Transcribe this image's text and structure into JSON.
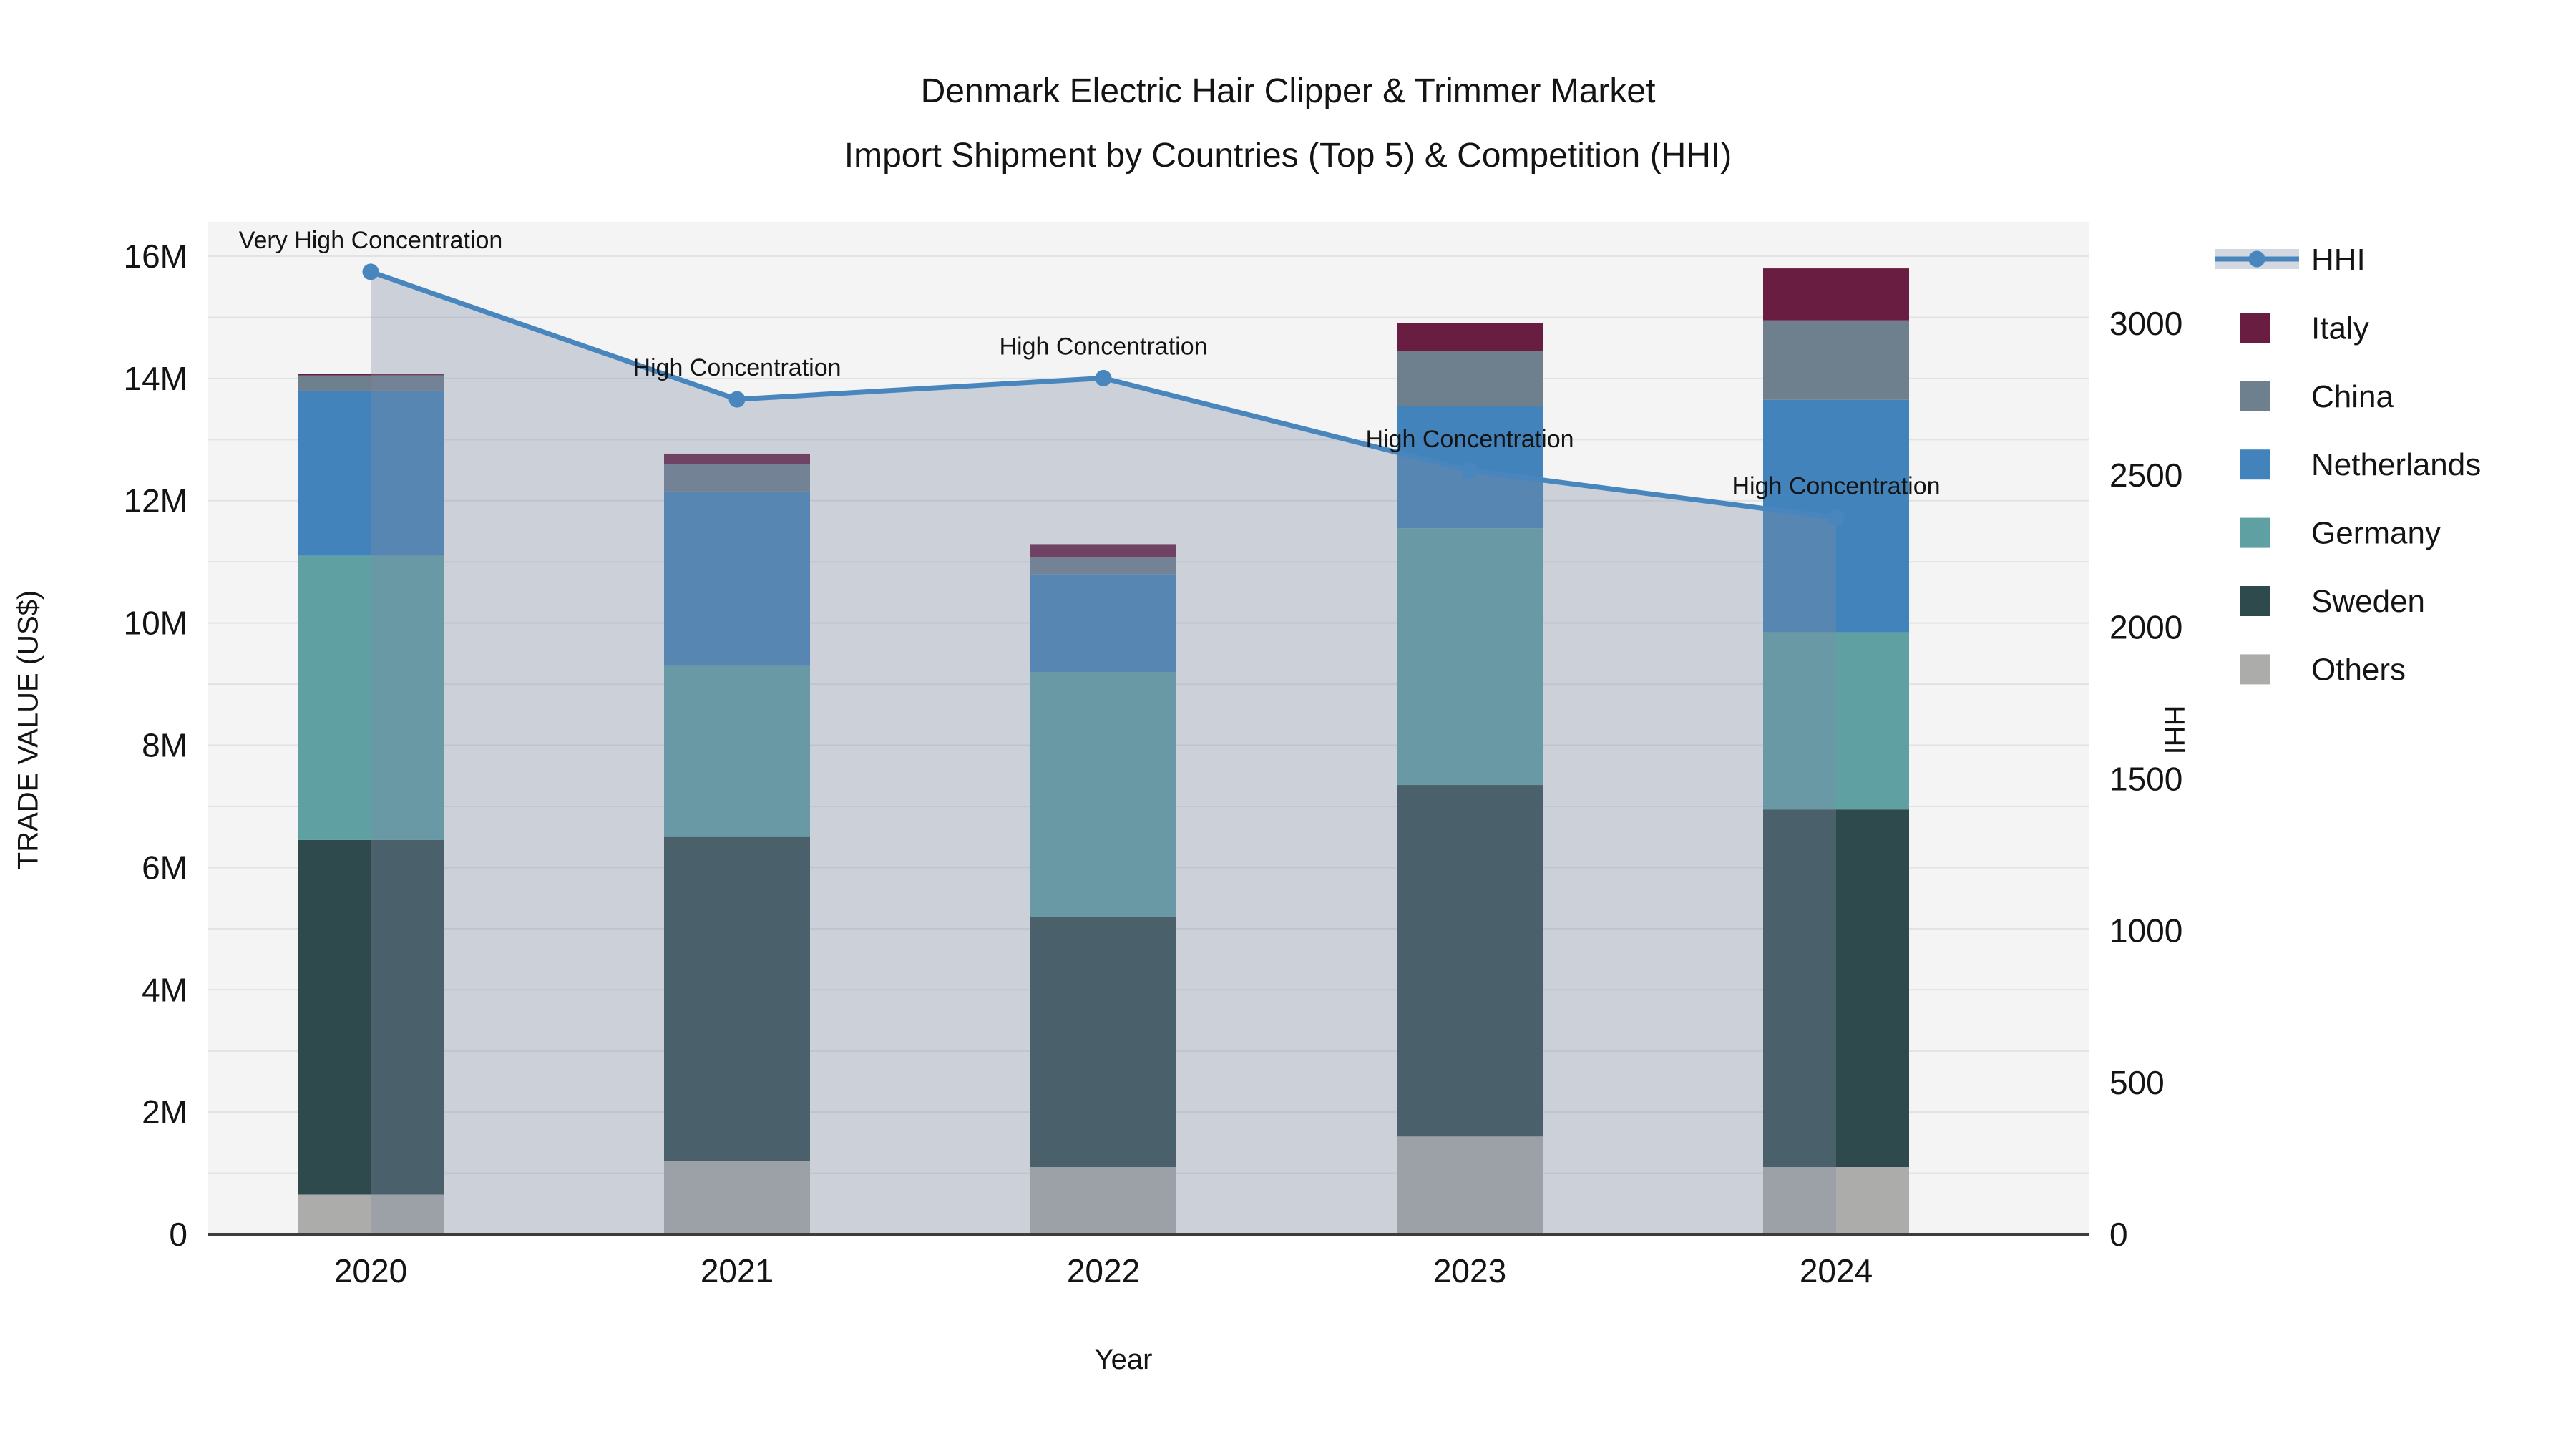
{
  "title": {
    "line1": "Denmark Electric Hair Clipper & Trimmer Market",
    "line2": "Import Shipment by Countries (Top 5) & Competition (HHI)"
  },
  "axes": {
    "left": {
      "title": "TRADE VALUE (US$)"
    },
    "bottom": {
      "title": "Year"
    },
    "right": {
      "title": "HHI"
    }
  },
  "legend": {
    "items": [
      {
        "label": "HHI",
        "kind": "line",
        "color": "#4986BE"
      },
      {
        "label": "Italy",
        "kind": "swatch",
        "color": "#691D41"
      },
      {
        "label": "China",
        "kind": "swatch",
        "color": "#6E7F8D"
      },
      {
        "label": "Netherlands",
        "kind": "swatch",
        "color": "#4383BB"
      },
      {
        "label": "Germany",
        "kind": "swatch",
        "color": "#5FA0A3"
      },
      {
        "label": "Sweden",
        "kind": "swatch",
        "color": "#2E4A4C"
      },
      {
        "label": "Others",
        "kind": "swatch",
        "color": "#ACACAA"
      }
    ]
  },
  "chart_data": {
    "type": "combo: stacked-bar + line",
    "categories": [
      "2020",
      "2021",
      "2022",
      "2023",
      "2024"
    ],
    "bar_unit": "million US$",
    "series": [
      {
        "name": "Others",
        "color": "#ACACAA",
        "values": [
          0.65,
          1.2,
          1.1,
          1.6,
          1.1
        ]
      },
      {
        "name": "Sweden",
        "color": "#2E4A4C",
        "values": [
          5.8,
          5.3,
          4.1,
          5.75,
          5.85
        ]
      },
      {
        "name": "Germany",
        "color": "#5FA0A3",
        "values": [
          4.65,
          2.8,
          4.0,
          4.2,
          2.9
        ]
      },
      {
        "name": "Netherlands",
        "color": "#4383BB",
        "values": [
          2.7,
          2.85,
          1.6,
          2.0,
          3.8
        ]
      },
      {
        "name": "China",
        "color": "#6E7F8D",
        "values": [
          0.25,
          0.45,
          0.27,
          0.9,
          1.3
        ]
      },
      {
        "name": "Italy",
        "color": "#691D41",
        "values": [
          0.03,
          0.17,
          0.22,
          0.45,
          0.85
        ]
      }
    ],
    "bar_totals": [
      14.08,
      12.77,
      11.29,
      14.9,
      15.8
    ],
    "line_series": {
      "name": "HHI",
      "axis": "right",
      "color": "#4986BE",
      "values": [
        3170,
        2750,
        2820,
        2515,
        2360
      ],
      "area_fill": "rgba(127,141,167,0.35)"
    },
    "annotations": [
      {
        "year": "2020",
        "text": "Very High Concentration"
      },
      {
        "year": "2021",
        "text": "High Concentration"
      },
      {
        "year": "2022",
        "text": "High Concentration"
      },
      {
        "year": "2023",
        "text": "High Concentration"
      },
      {
        "year": "2024",
        "text": "High Concentration"
      }
    ],
    "left_axis": {
      "label": "TRADE VALUE (US$)",
      "range_millions": [
        0,
        16
      ],
      "ticks": [
        {
          "v": 0,
          "label": "0"
        },
        {
          "v": 2,
          "label": "2M"
        },
        {
          "v": 4,
          "label": "4M"
        },
        {
          "v": 6,
          "label": "6M"
        },
        {
          "v": 8,
          "label": "8M"
        },
        {
          "v": 10,
          "label": "10M"
        },
        {
          "v": 12,
          "label": "12M"
        },
        {
          "v": 14,
          "label": "14M"
        },
        {
          "v": 16,
          "label": "16M"
        }
      ]
    },
    "right_axis": {
      "label": "HHI",
      "range": [
        0,
        3335
      ],
      "ticks": [
        {
          "v": 0,
          "label": "0"
        },
        {
          "v": 500,
          "label": "500"
        },
        {
          "v": 1000,
          "label": "1000"
        },
        {
          "v": 1500,
          "label": "1500"
        },
        {
          "v": 2000,
          "label": "2000"
        },
        {
          "v": 2500,
          "label": "2500"
        },
        {
          "v": 3000,
          "label": "3000"
        }
      ]
    },
    "grid": true,
    "legend_position": "right"
  },
  "colors": {
    "plot_bg": "#F4F4F4",
    "gridline": "#E2E2E2",
    "axis_line": "#3C3C3C",
    "text": "#141414",
    "hhi_line": "#4986BE",
    "area_fill": "rgba(127,141,167,0.35)",
    "legend_band": "#D2D7E0"
  }
}
